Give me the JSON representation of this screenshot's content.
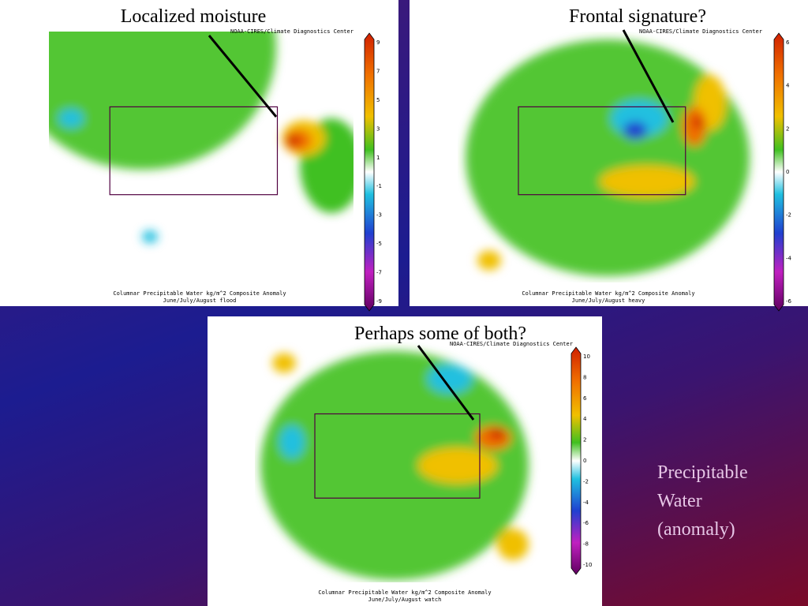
{
  "panels": [
    {
      "title": "Localized moisture",
      "credit": "NOAA-CIRES/Climate Diagnostics Center",
      "caption": [
        "Columnar Precipitable Water kg/m^2 Composite Anomaly",
        "June/July/August flood"
      ],
      "colorbar": [
        "9",
        "7",
        "5",
        "3",
        "1",
        "-1",
        "-3",
        "-5",
        "-7",
        "-9"
      ]
    },
    {
      "title": "Frontal signature?",
      "credit": "NOAA-CIRES/Climate Diagnostics Center",
      "caption": [
        "Columnar Precipitable Water kg/m^2 Composite Anomaly",
        "June/July/August heavy"
      ],
      "colorbar": [
        "6",
        "4",
        "2",
        "0",
        "-2",
        "-4",
        "-6"
      ]
    },
    {
      "title": "Perhaps some of both?",
      "credit": "NOAA-CIRES/Climate Diagnostics Center",
      "caption": [
        "Columnar Precipitable Water kg/m^2 Composite Anomaly",
        "June/July/August watch"
      ],
      "colorbar": [
        "10",
        "8",
        "6",
        "4",
        "2",
        "0",
        "-2",
        "-4",
        "-6",
        "-8",
        "-10"
      ]
    }
  ],
  "side_text": [
    "Precipitable",
    "Water",
    "(anomaly)"
  ]
}
